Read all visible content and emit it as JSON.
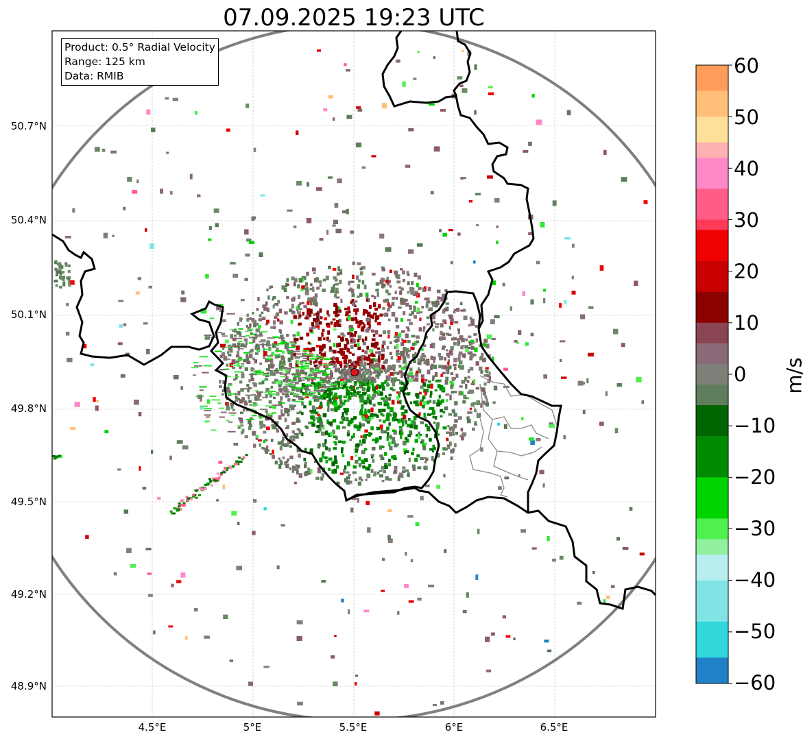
{
  "title": "07.09.2025 19:23 UTC",
  "info_box": {
    "product": "Product: 0.5° Radial Velocity",
    "range": "Range: 125 km",
    "data": "Data: RMIB"
  },
  "latitude_ticks": [
    "50.7°N",
    "50.4°N",
    "50.1°N",
    "49.8°N",
    "49.5°N",
    "49.2°N",
    "48.9°N"
  ],
  "longitude_ticks": [
    "4.5°E",
    "5°E",
    "5.5°E",
    "6°E",
    "6.5°E"
  ],
  "radar_site": {
    "lon": 5.505,
    "lat": 49.915,
    "marker_color": "#e8141c"
  },
  "range_ring_color": "#808080",
  "colorbar": {
    "label": "m/s",
    "min": -60,
    "max": 60,
    "ticks": [
      "60",
      "50",
      "40",
      "30",
      "20",
      "10",
      "0",
      "−10",
      "−20",
      "−30",
      "−40",
      "−50",
      "−60"
    ],
    "bands": [
      {
        "from": 55,
        "to": 60,
        "color": "#ff9c5a"
      },
      {
        "from": 50,
        "to": 55,
        "color": "#ffbf78"
      },
      {
        "from": 45,
        "to": 50,
        "color": "#ffe09a"
      },
      {
        "from": 42,
        "to": 45,
        "color": "#ffb0b0"
      },
      {
        "from": 36,
        "to": 42,
        "color": "#ff88c8"
      },
      {
        "from": 30,
        "to": 36,
        "color": "#ff5c88"
      },
      {
        "from": 28,
        "to": 30,
        "color": "#ff3a58"
      },
      {
        "from": 22,
        "to": 28,
        "color": "#f00000"
      },
      {
        "from": 16,
        "to": 22,
        "color": "#c80000"
      },
      {
        "from": 10,
        "to": 16,
        "color": "#8c0000"
      },
      {
        "from": 6,
        "to": 10,
        "color": "#8a4552"
      },
      {
        "from": 2,
        "to": 6,
        "color": "#8a6a78"
      },
      {
        "from": -2,
        "to": 2,
        "color": "#7e7f78"
      },
      {
        "from": -6,
        "to": -2,
        "color": "#5e7e5c"
      },
      {
        "from": -12,
        "to": -6,
        "color": "#006400"
      },
      {
        "from": -20,
        "to": -12,
        "color": "#008a00"
      },
      {
        "from": -28,
        "to": -20,
        "color": "#00d400"
      },
      {
        "from": -32,
        "to": -28,
        "color": "#50f050"
      },
      {
        "from": -35,
        "to": -32,
        "color": "#90f0a0"
      },
      {
        "from": -40,
        "to": -35,
        "color": "#b8eef0"
      },
      {
        "from": -48,
        "to": -40,
        "color": "#80e4e4"
      },
      {
        "from": -55,
        "to": -48,
        "color": "#30d8dc"
      },
      {
        "from": -60,
        "to": -55,
        "color": "#2080c8"
      }
    ]
  }
}
